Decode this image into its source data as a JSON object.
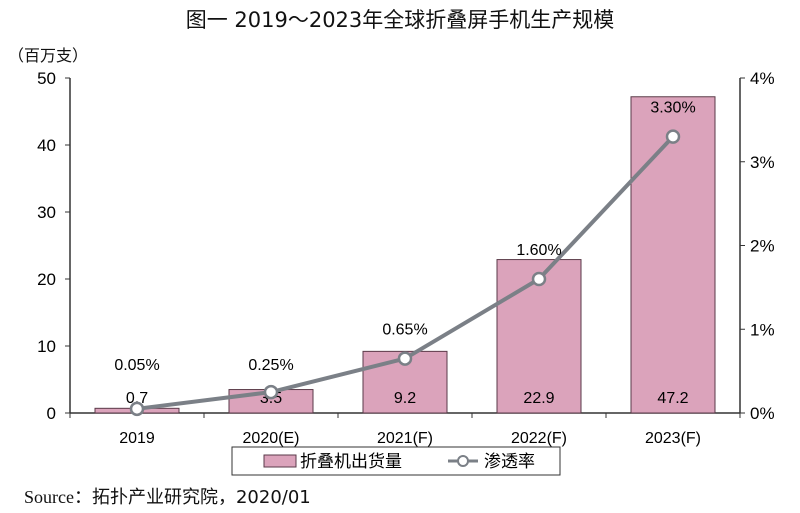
{
  "chart_data": {
    "type": "bar+line",
    "title": "图一  2019～2023年全球折叠屏手机生产规模",
    "ylabel_left": "（百万支）",
    "categories": [
      "2019",
      "2020(E)",
      "2021(F)",
      "2022(F)",
      "2023(F)"
    ],
    "series": [
      {
        "name": "折叠机出货量",
        "type": "bar",
        "axis": "left",
        "values": [
          0.7,
          3.5,
          9.2,
          22.9,
          47.2
        ],
        "labels": [
          "0.7",
          "3.5",
          "9.2",
          "22.9",
          "47.2"
        ],
        "color": "#dba3bb"
      },
      {
        "name": "渗透率",
        "type": "line",
        "axis": "right",
        "values": [
          0.05,
          0.25,
          0.65,
          1.6,
          3.3
        ],
        "labels": [
          "0.05%",
          "0.25%",
          "0.65%",
          "1.60%",
          "3.30%"
        ],
        "color": "#7b8087"
      }
    ],
    "ylim_left": [
      0,
      50
    ],
    "yticks_left": [
      "0",
      "10",
      "20",
      "30",
      "40",
      "50"
    ],
    "ylim_right": [
      0,
      4
    ],
    "yticks_right": [
      "0%",
      "1%",
      "2%",
      "3%",
      "4%"
    ],
    "grid": false,
    "legend_position": "bottom"
  },
  "source": {
    "label": "Source",
    "sep": "：",
    "text": "拓扑产业研究院，2020/01"
  }
}
